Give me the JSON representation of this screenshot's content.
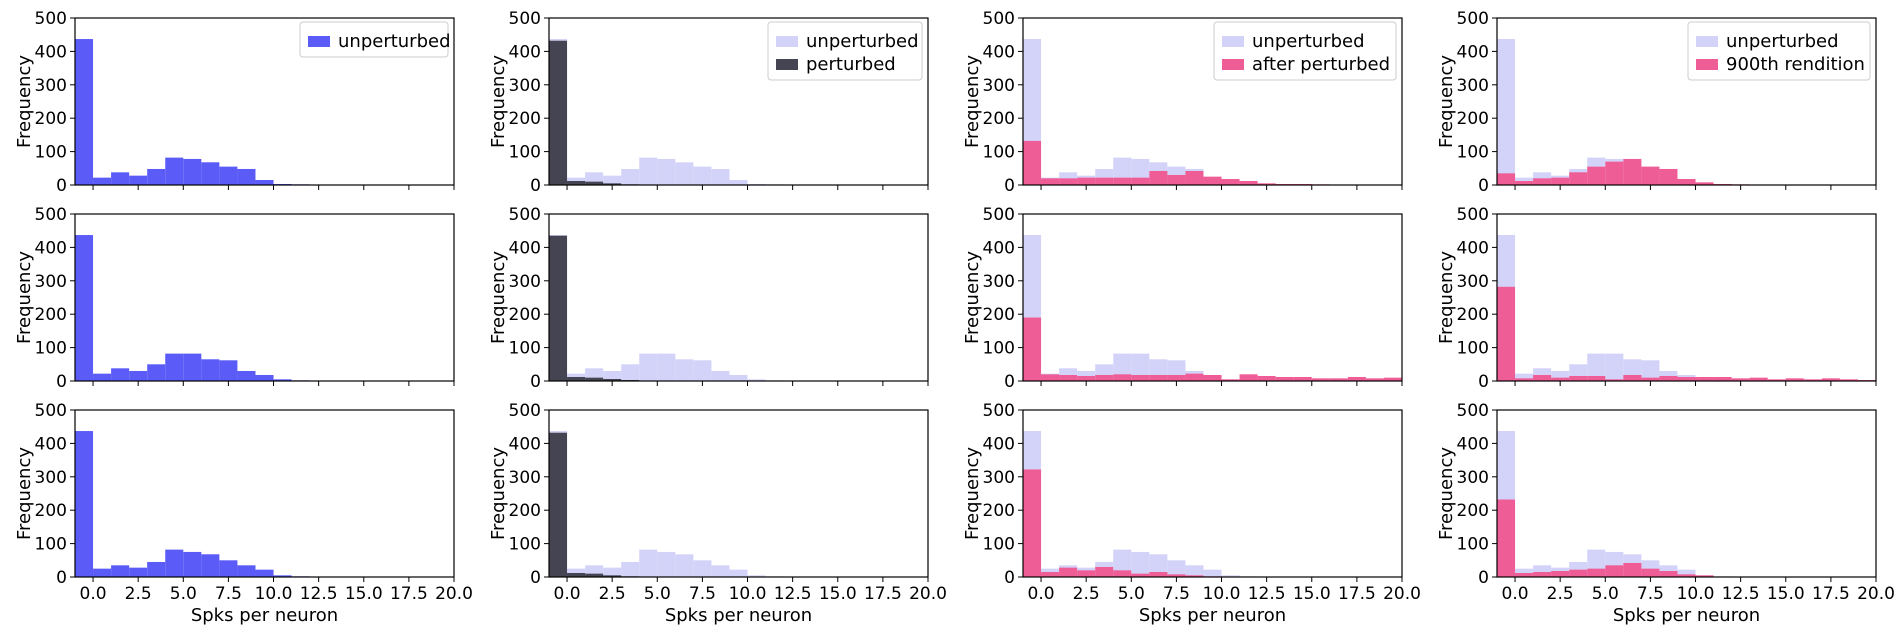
{
  "colors": {
    "unperturbed": "#5b5bf7",
    "unperturbed_bg": "#d3d3f9",
    "perturbed": "#444452",
    "after": "#ef5d96"
  },
  "chart_data": {
    "type": "bar",
    "grid": false,
    "layout": "3x4",
    "xlabel": "Spks per neuron",
    "ylabel": "Frequency",
    "xlim": [
      -1,
      20
    ],
    "ylim": [
      0,
      500
    ],
    "xticks": [
      "0.0",
      "2.5",
      "5.0",
      "7.5",
      "10.0",
      "12.5",
      "15.0",
      "17.5",
      "20.0"
    ],
    "yticks": [
      "0",
      "100",
      "200",
      "300",
      "400",
      "500"
    ],
    "bin_width": 1,
    "bin_starts": [
      -1,
      0,
      1,
      2,
      3,
      4,
      5,
      6,
      7,
      8,
      9,
      10,
      11,
      12,
      13,
      14,
      15,
      16,
      17,
      18,
      19
    ],
    "legend_position": "top-right",
    "columns": [
      {
        "legend": [
          "unperturbed"
        ]
      },
      {
        "legend": [
          "unperturbed",
          "perturbed"
        ]
      },
      {
        "legend": [
          "unperturbed",
          "after perturbed"
        ]
      },
      {
        "legend": [
          "unperturbed",
          "900th rendition"
        ]
      }
    ],
    "rows": [
      {
        "unperturbed": [
          437,
          22,
          38,
          28,
          48,
          82,
          78,
          68,
          55,
          48,
          15,
          3,
          2,
          0,
          0,
          0,
          0,
          0,
          0,
          0,
          0
        ],
        "perturbed": [
          432,
          12,
          10,
          5,
          2,
          0,
          0,
          0,
          0,
          0,
          0,
          0,
          0,
          0,
          0,
          0,
          0,
          0,
          0,
          0,
          0
        ],
        "after perturbed": [
          132,
          20,
          20,
          22,
          22,
          22,
          22,
          42,
          30,
          42,
          25,
          18,
          12,
          5,
          3,
          3,
          2,
          0,
          0,
          0,
          0
        ],
        "900th rendition": [
          35,
          12,
          20,
          22,
          38,
          55,
          70,
          78,
          55,
          48,
          18,
          8,
          3,
          2,
          0,
          0,
          0,
          0,
          0,
          0,
          0
        ]
      },
      {
        "unperturbed": [
          437,
          22,
          38,
          30,
          50,
          82,
          82,
          65,
          62,
          30,
          18,
          5,
          2,
          0,
          0,
          0,
          0,
          0,
          0,
          0,
          0
        ],
        "perturbed": [
          435,
          12,
          10,
          6,
          3,
          0,
          0,
          0,
          0,
          0,
          0,
          0,
          0,
          0,
          0,
          0,
          0,
          0,
          0,
          0,
          0
        ],
        "after perturbed": [
          190,
          20,
          18,
          15,
          18,
          20,
          18,
          18,
          18,
          22,
          18,
          5,
          20,
          15,
          12,
          12,
          8,
          8,
          12,
          8,
          10
        ],
        "900th rendition": [
          282,
          8,
          18,
          10,
          15,
          15,
          5,
          18,
          10,
          15,
          12,
          12,
          12,
          8,
          10,
          5,
          8,
          5,
          8,
          5,
          3
        ]
      },
      {
        "unperturbed": [
          437,
          25,
          35,
          28,
          45,
          82,
          75,
          68,
          50,
          35,
          22,
          5,
          2,
          0,
          0,
          0,
          0,
          0,
          0,
          0,
          0
        ],
        "perturbed": [
          432,
          12,
          10,
          5,
          2,
          0,
          0,
          0,
          0,
          0,
          0,
          0,
          0,
          0,
          0,
          0,
          0,
          0,
          0,
          0,
          0
        ],
        "after perturbed": [
          322,
          15,
          28,
          20,
          30,
          20,
          10,
          15,
          8,
          5,
          2,
          0,
          0,
          0,
          0,
          0,
          0,
          0,
          0,
          0,
          0
        ],
        "900th rendition": [
          232,
          12,
          15,
          18,
          22,
          25,
          35,
          42,
          25,
          18,
          8,
          5,
          0,
          0,
          0,
          0,
          0,
          0,
          0,
          0,
          0
        ]
      }
    ]
  }
}
